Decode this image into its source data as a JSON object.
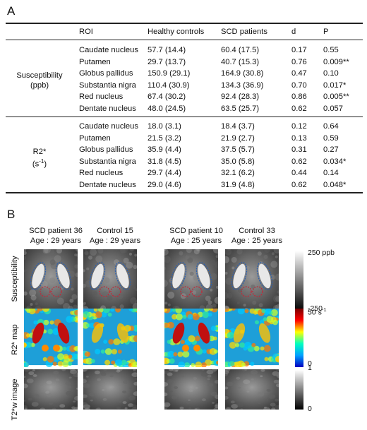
{
  "panel_a": {
    "letter": "A",
    "columns": [
      "ROI",
      "Healthy controls",
      "SCD patients",
      "d",
      "P"
    ],
    "groups": [
      {
        "label_line1": "Susceptibility",
        "label_line2": "(ppb)",
        "rows": [
          {
            "roi": "Caudate nucleus",
            "hc": "57.7 (14.4)",
            "scd": "60.4 (17.5)",
            "d": "0.17",
            "p": "0.55"
          },
          {
            "roi": "Putamen",
            "hc": "29.7 (13.7)",
            "scd": "40.7 (15.3)",
            "d": "0.76",
            "p": "0.009**"
          },
          {
            "roi": "Globus pallidus",
            "hc": "150.9 (29.1)",
            "scd": "164.9 (30.8)",
            "d": "0.47",
            "p": "0.10"
          },
          {
            "roi": "Substantia nigra",
            "hc": "110.4 (30.9)",
            "scd": "134.3 (36.9)",
            "d": "0.70",
            "p": "0.017*"
          },
          {
            "roi": "Red nucleus",
            "hc": "67.4 (30.2)",
            "scd": "92.4 (28.3)",
            "d": "0.86",
            "p": "0.005**"
          },
          {
            "roi": "Dentate nucleus",
            "hc": "48.0 (24.5)",
            "scd": "63.5 (25.7)",
            "d": "0.62",
            "p": "0.057"
          }
        ]
      },
      {
        "label_line1": "R2*",
        "label_line2_base": "(s",
        "label_line2_sup": "-1",
        "label_line2_end": ")",
        "rows": [
          {
            "roi": "Caudate nucleus",
            "hc": "18.0 (3.1)",
            "scd": "18.4 (3.7)",
            "d": "0.12",
            "p": "0.64"
          },
          {
            "roi": "Putamen",
            "hc": "21.5 (3.2)",
            "scd": "21.9 (2.7)",
            "d": "0.13",
            "p": "0.59"
          },
          {
            "roi": "Globus pallidus",
            "hc": "35.9 (4.4)",
            "scd": "37.5 (5.7)",
            "d": "0.31",
            "p": "0.27"
          },
          {
            "roi": "Substantia nigra",
            "hc": "31.8 (4.5)",
            "scd": "35.0 (5.8)",
            "d": "0.62",
            "p": "0.034*"
          },
          {
            "roi": "Red nucleus",
            "hc": "29.7 (4.4)",
            "scd": "32.1 (6.2)",
            "d": "0.44",
            "p": "0.14"
          },
          {
            "roi": "Dentate nucleus",
            "hc": "29.0 (4.6)",
            "scd": "31.9 (4.8)",
            "d": "0.62",
            "p": "0.048*"
          }
        ]
      }
    ]
  },
  "panel_b": {
    "letter": "B",
    "subjects": [
      {
        "name": "SCD patient 36",
        "age": "Age : 29 years"
      },
      {
        "name": "Control 15",
        "age": "Age : 29 years"
      },
      {
        "name": "SCD patient 10",
        "age": "Age : 25 years"
      },
      {
        "name": "Control 33",
        "age": "Age : 25 years"
      }
    ],
    "rows": [
      {
        "label": "Susceptibility",
        "colormap": "gray",
        "cbar_top": "250 ppb",
        "cbar_bottom": "-250"
      },
      {
        "label": "R2* map",
        "colormap": "jet",
        "cbar_top_base": "50 s",
        "cbar_top_sup": "-1",
        "cbar_bottom": "0"
      },
      {
        "label": "T2*w image",
        "colormap": "gray",
        "cbar_top": "1",
        "cbar_bottom": "0"
      }
    ],
    "roi_outline_colors": {
      "globus_pallidus": "#2a5fb0",
      "red_nucleus": "#c0283a"
    }
  }
}
